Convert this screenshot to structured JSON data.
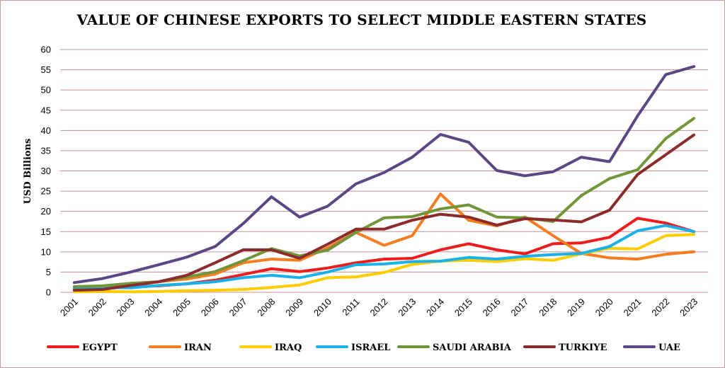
{
  "chart_data": {
    "type": "line",
    "title": "VALUE OF CHINESE EXPORTS TO SELECT MIDDLE EASTERN STATES",
    "ylabel": "USD Billions",
    "xlabel": "",
    "ylim": [
      0,
      60
    ],
    "yticks": [
      0,
      5,
      10,
      15,
      20,
      25,
      30,
      35,
      40,
      45,
      50,
      55,
      60
    ],
    "grid": true,
    "legend_position": "bottom",
    "x": [
      "2001",
      "2002",
      "2003",
      "2004",
      "2005",
      "2006",
      "2007",
      "2008",
      "2009",
      "2010",
      "2011",
      "2012",
      "2013",
      "2014",
      "2015",
      "2016",
      "2017",
      "2018",
      "2019",
      "2020",
      "2021",
      "2022",
      "2023"
    ],
    "series": [
      {
        "name": "EGYPT",
        "color": "#ee1c1c",
        "values": [
          0.6,
          0.9,
          1.4,
          1.6,
          2.1,
          3.0,
          4.4,
          5.8,
          5.1,
          6.0,
          7.3,
          8.2,
          8.4,
          10.5,
          12.0,
          10.5,
          9.5,
          12.0,
          12.2,
          13.6,
          18.3,
          17.1,
          15.0
        ]
      },
      {
        "name": "IRAN",
        "color": "#f57c1f",
        "values": [
          0.9,
          1.4,
          2.2,
          2.6,
          3.3,
          4.5,
          7.3,
          8.2,
          7.9,
          11.0,
          14.8,
          11.6,
          14.0,
          24.3,
          17.8,
          16.4,
          18.6,
          14.0,
          9.6,
          8.5,
          8.2,
          9.4,
          10.0
        ]
      },
      {
        "name": "IRAQ",
        "color": "#ffcc00",
        "values": [
          0.1,
          0.2,
          0.1,
          0.2,
          0.4,
          0.5,
          0.7,
          1.2,
          1.8,
          3.6,
          3.8,
          4.9,
          6.9,
          7.7,
          7.9,
          7.6,
          8.3,
          7.9,
          9.5,
          10.9,
          10.7,
          14.0,
          14.3
        ]
      },
      {
        "name": "ISRAEL",
        "color": "#19b2e8",
        "values": [
          1.1,
          1.2,
          1.1,
          1.7,
          2.1,
          2.6,
          3.6,
          4.2,
          3.6,
          5.0,
          6.8,
          7.0,
          7.6,
          7.7,
          8.6,
          8.2,
          8.9,
          9.3,
          9.6,
          11.3,
          15.2,
          16.5,
          15.0
        ]
      },
      {
        "name": "SAUDI ARABIA",
        "color": "#71963a",
        "values": [
          1.4,
          1.6,
          2.2,
          2.6,
          3.8,
          5.1,
          7.8,
          10.8,
          9.0,
          10.4,
          14.8,
          18.4,
          18.7,
          20.6,
          21.6,
          18.6,
          18.4,
          17.5,
          23.9,
          28.1,
          30.3,
          38.0,
          43.0
        ]
      },
      {
        "name": "TURKIYE",
        "color": "#8b2b2b",
        "values": [
          0.5,
          0.7,
          1.7,
          2.6,
          4.2,
          7.3,
          10.5,
          10.5,
          8.4,
          11.9,
          15.6,
          15.6,
          17.8,
          19.3,
          18.6,
          16.6,
          18.2,
          17.9,
          17.4,
          20.3,
          29.1,
          34.0,
          38.9
        ]
      },
      {
        "name": "UAE",
        "color": "#5b4785",
        "values": [
          2.4,
          3.4,
          5.0,
          6.8,
          8.7,
          11.3,
          17.0,
          23.6,
          18.6,
          21.3,
          26.8,
          29.6,
          33.4,
          39.0,
          37.1,
          30.1,
          28.8,
          29.8,
          33.4,
          32.3,
          43.6,
          53.8,
          55.8
        ]
      }
    ]
  }
}
